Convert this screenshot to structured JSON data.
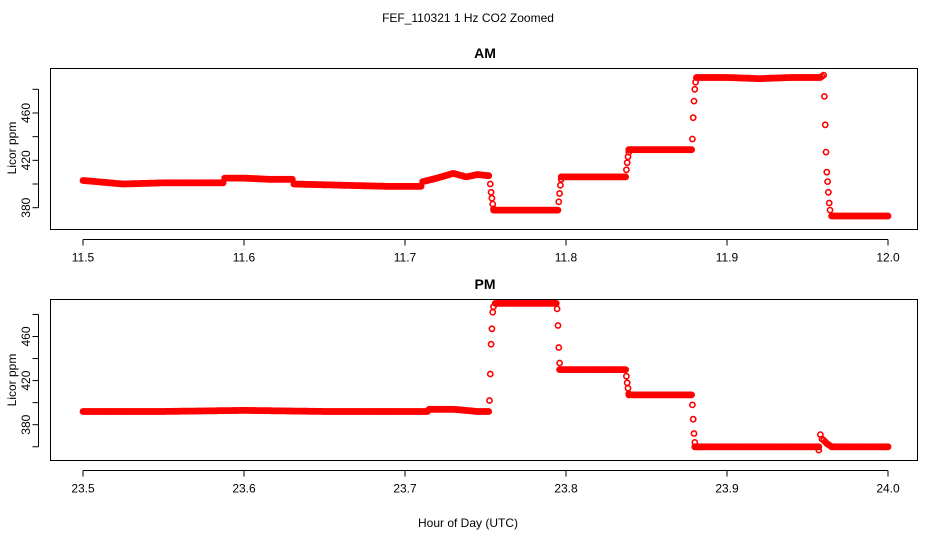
{
  "figure": {
    "title": "FEF_110321  1 Hz CO2 Zoomed",
    "xlabel": "Hour of Day (UTC)",
    "point_color": "#ff0000"
  },
  "chart_data": [
    {
      "type": "scatter",
      "title": "AM",
      "xlabel": "",
      "ylabel": "Licor ppm",
      "xlim": [
        11.5,
        12.0
      ],
      "ylim": [
        362,
        498
      ],
      "xticks": [
        "11.5",
        "11.6",
        "11.7",
        "11.8",
        "11.9",
        "12.0"
      ],
      "yticks": [
        "380",
        "420",
        "460"
      ],
      "marker": "open-circle",
      "color": "#ff0000",
      "segments": [
        {
          "x": [
            11.5,
            11.525,
            11.55,
            11.575,
            11.587
          ],
          "y": [
            403,
            400,
            401,
            401,
            401
          ]
        },
        {
          "x": [
            11.588,
            11.6,
            11.615,
            11.63
          ],
          "y": [
            405,
            405,
            404,
            404
          ]
        },
        {
          "x": [
            11.631,
            11.66,
            11.69,
            11.71
          ],
          "y": [
            400,
            399,
            398,
            398
          ]
        },
        {
          "x": [
            11.711,
            11.72,
            11.73,
            11.738,
            11.745,
            11.752
          ],
          "y": [
            402,
            405,
            409,
            406,
            408,
            407
          ]
        },
        {
          "x": [
            11.753,
            11.7535,
            11.754,
            11.7545,
            11.755
          ],
          "y": [
            400,
            393,
            388,
            383,
            379
          ]
        },
        {
          "x": [
            11.755,
            11.77,
            11.785,
            11.795
          ],
          "y": [
            378,
            378,
            378,
            378
          ]
        },
        {
          "x": [
            11.7955,
            11.796,
            11.7965,
            11.797
          ],
          "y": [
            385,
            392,
            399,
            404
          ]
        },
        {
          "x": [
            11.797,
            11.815,
            11.837
          ],
          "y": [
            406,
            406,
            406
          ]
        },
        {
          "x": [
            11.8375,
            11.838,
            11.8385,
            11.839
          ],
          "y": [
            412,
            418,
            423,
            427
          ]
        },
        {
          "x": [
            11.839,
            11.86,
            11.878
          ],
          "y": [
            429,
            429,
            429
          ]
        },
        {
          "x": [
            11.8785,
            11.879,
            11.8795,
            11.88,
            11.8805
          ],
          "y": [
            438,
            456,
            470,
            480,
            486
          ]
        },
        {
          "x": [
            11.881,
            11.9,
            11.92,
            11.94,
            11.958,
            11.96
          ],
          "y": [
            490,
            490,
            489,
            490,
            490,
            492
          ]
        },
        {
          "x": [
            11.9605,
            11.961,
            11.9615,
            11.962,
            11.9625,
            11.963,
            11.9635,
            11.964
          ],
          "y": [
            474,
            450,
            427,
            410,
            402,
            393,
            384,
            378
          ]
        },
        {
          "x": [
            11.965,
            11.98,
            12.0
          ],
          "y": [
            373,
            373,
            373
          ]
        }
      ]
    },
    {
      "type": "scatter",
      "title": "PM",
      "xlabel": "",
      "ylabel": "Licor ppm",
      "xlim": [
        23.5,
        24.0
      ],
      "ylim": [
        348,
        494
      ],
      "xticks": [
        "23.5",
        "23.6",
        "23.7",
        "23.8",
        "23.9",
        "24.0"
      ],
      "yticks": [
        "380",
        "420",
        "460"
      ],
      "marker": "open-circle",
      "color": "#ff0000",
      "segments": [
        {
          "x": [
            23.5,
            23.55,
            23.6,
            23.65,
            23.7,
            23.714
          ],
          "y": [
            392,
            392,
            393,
            392,
            392,
            392
          ]
        },
        {
          "x": [
            23.715,
            23.73,
            23.745,
            23.752
          ],
          "y": [
            394,
            394,
            392,
            392
          ]
        },
        {
          "x": [
            23.7525,
            23.753,
            23.7535,
            23.754,
            23.7545,
            23.755
          ],
          "y": [
            402,
            426,
            453,
            467,
            482,
            487
          ]
        },
        {
          "x": [
            23.756,
            23.775,
            23.794
          ],
          "y": [
            490,
            490,
            490
          ]
        },
        {
          "x": [
            23.7945,
            23.795,
            23.7955,
            23.796
          ],
          "y": [
            485,
            470,
            450,
            436
          ]
        },
        {
          "x": [
            23.796,
            23.815,
            23.837
          ],
          "y": [
            430,
            430,
            430
          ]
        },
        {
          "x": [
            23.8375,
            23.838,
            23.8385,
            23.839
          ],
          "y": [
            424,
            418,
            413,
            408
          ]
        },
        {
          "x": [
            23.839,
            23.86,
            23.878
          ],
          "y": [
            407,
            407,
            407
          ]
        },
        {
          "x": [
            23.8785,
            23.879,
            23.8795,
            23.88
          ],
          "y": [
            398,
            385,
            372,
            364
          ]
        },
        {
          "x": [
            23.88,
            23.91,
            23.94,
            23.957
          ],
          "y": [
            360,
            360,
            360,
            360
          ]
        },
        {
          "x": [
            23.957,
            23.958,
            23.959,
            23.96,
            23.962,
            23.965
          ],
          "y": [
            357,
            371,
            367,
            366,
            363,
            360
          ]
        },
        {
          "x": [
            23.966,
            23.985,
            24.0
          ],
          "y": [
            360,
            360,
            360
          ]
        }
      ]
    }
  ]
}
